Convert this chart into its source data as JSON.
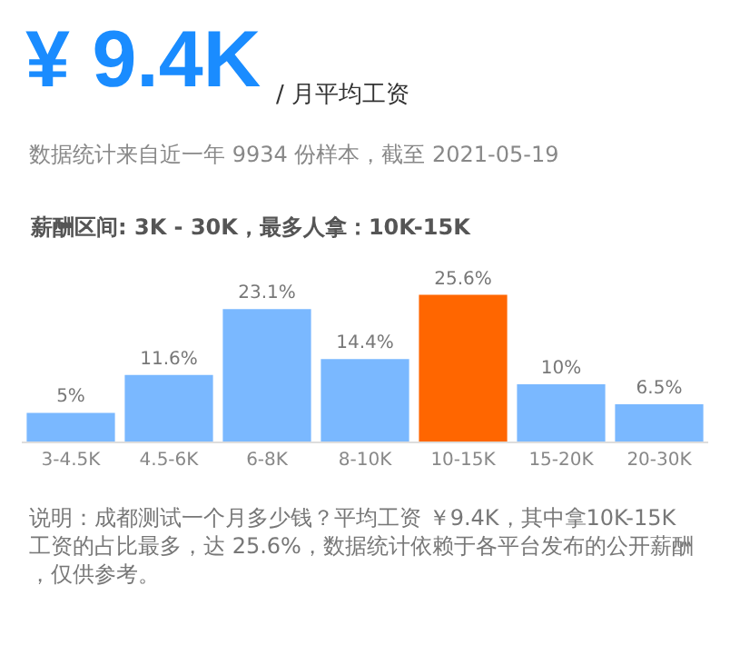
{
  "chart_data": {
    "type": "bar",
    "title": "¥ 9.4K",
    "subtitle": "/ 月平均工资",
    "annotations": [
      "数据统计来自近一年 9934 份样本，截至 2021-05-19",
      "薪酬区间: 3K - 30K，最多人拿：10K-15K",
      "说明：成都测试一个月多少钱？平均工资 ￥9.4K，其中拿10K-15K 工资的占比最多，达 25.6%，数据统计依赖于各平台发布的公开薪酬，仅供参考。"
    ],
    "categories": [
      "3-4.5K",
      "4.5-6K",
      "6-8K",
      "8-10K",
      "10-15K",
      "15-20K",
      "20-30K"
    ],
    "values": [
      5,
      11.6,
      23.1,
      14.4,
      25.6,
      10,
      6.5
    ],
    "colors": [
      "#7ab8ff",
      "#7ab8ff",
      "#7ab8ff",
      "#7ab8ff",
      "#ff6600",
      "#7ab8ff",
      "#7ab8ff"
    ],
    "value_labels": [
      "5%",
      "11.6%",
      "23.1%",
      "14.4%",
      "25.6%",
      "10%",
      "6.5%"
    ],
    "legend": false
  }
}
